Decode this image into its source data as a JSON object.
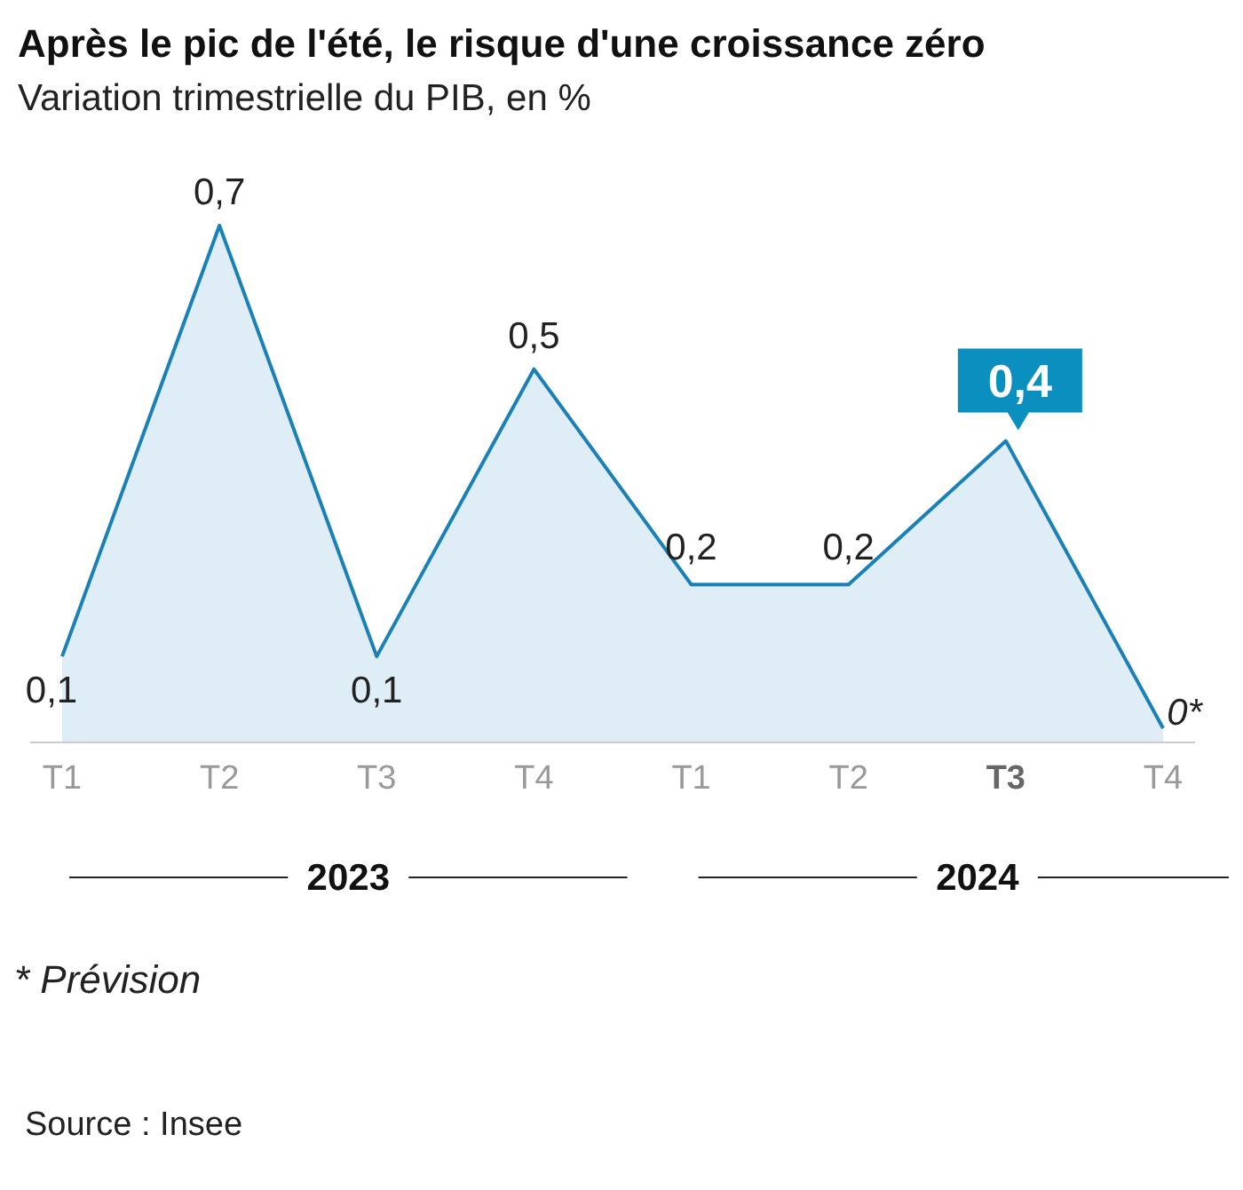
{
  "chart_data": {
    "type": "area",
    "title": "Après le pic de l'été, le risque d'une croissance zéro",
    "subtitle": "Variation trimestrielle du PIB, en %",
    "categories": [
      "T1",
      "T2",
      "T3",
      "T4",
      "T1",
      "T2",
      "T3",
      "T4"
    ],
    "values": [
      0.1,
      0.7,
      0.1,
      0.5,
      0.2,
      0.2,
      0.4,
      0
    ],
    "value_labels": [
      "0,1",
      "0,7",
      "0,1",
      "0,5",
      "0,2",
      "0,2",
      "0,4",
      "0*"
    ],
    "color": "#1a80b6",
    "colors": [
      "#1a80b6",
      "#1a80b6",
      "#1a80b6",
      "#1a80b6",
      "#1a80b6",
      "#1a80b6",
      "#0b8fbf",
      "#1a80b6"
    ],
    "annotations": [
      "2023",
      "2024",
      "* Prévision",
      "Source : Insee"
    ]
  }
}
